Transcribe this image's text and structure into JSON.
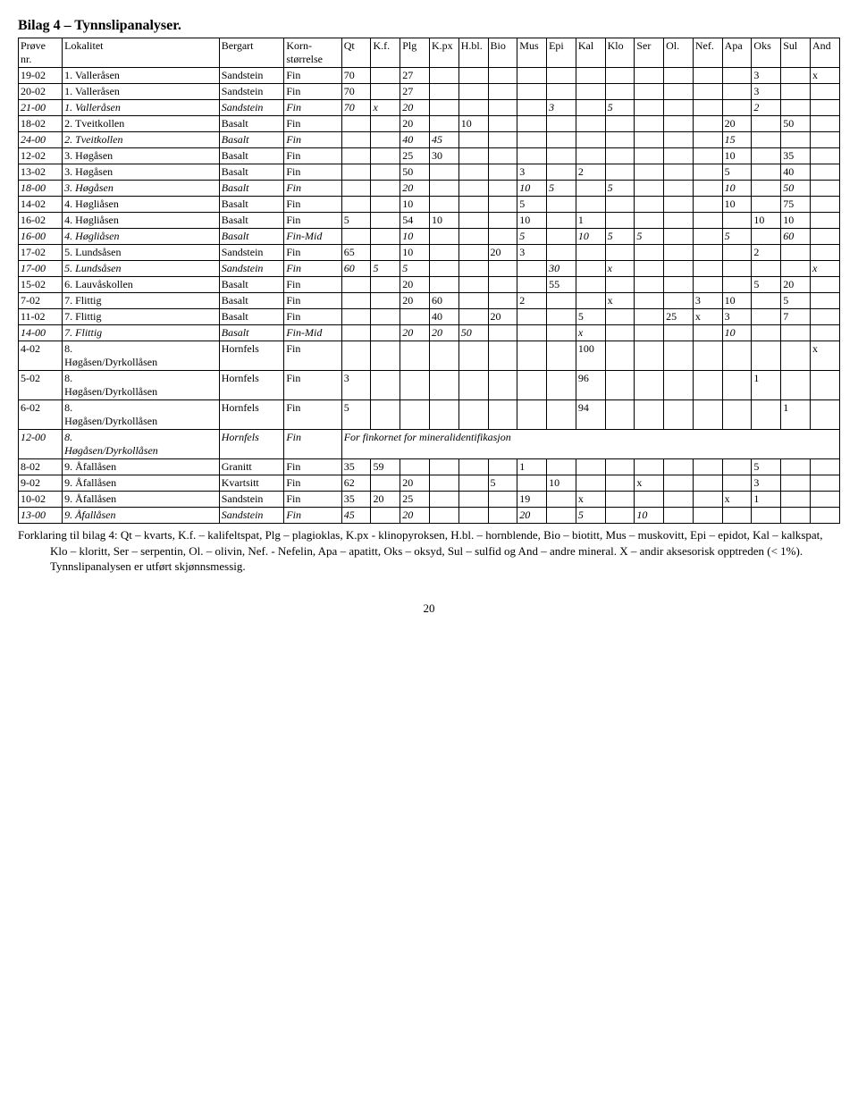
{
  "title": "Bilag 4 – Tynnslipanalyser.",
  "columns": [
    "Prøve\nnr.",
    "Lokalitet",
    "Bergart",
    "Korn-\nstørrelse",
    "Qt",
    "K.f.",
    "Plg",
    "K.px",
    "H.bl.",
    "Bio",
    "Mus",
    "Epi",
    "Kal",
    "Klo",
    "Ser",
    "Ol.",
    "Nef.",
    "Apa",
    "Oks",
    "Sul",
    "And"
  ],
  "rows": [
    {
      "i": false,
      "c": [
        "19-02",
        "1. Valleråsen",
        "Sandstein",
        "Fin",
        "70",
        "",
        "27",
        "",
        "",
        "",
        "",
        "",
        "",
        "",
        "",
        "",
        "",
        "",
        "3",
        "",
        "x"
      ]
    },
    {
      "i": false,
      "c": [
        "20-02",
        "1. Valleråsen",
        "Sandstein",
        "Fin",
        "70",
        "",
        "27",
        "",
        "",
        "",
        "",
        "",
        "",
        "",
        "",
        "",
        "",
        "",
        "3",
        "",
        ""
      ]
    },
    {
      "i": true,
      "c": [
        "21-00",
        "1. Valleråsen",
        "Sandstein",
        "Fin",
        "70",
        "x",
        "20",
        "",
        "",
        "",
        "",
        "3",
        "",
        "5",
        "",
        "",
        "",
        "",
        "2",
        "",
        ""
      ]
    },
    {
      "i": false,
      "c": [
        "18-02",
        "2. Tveitkollen",
        "Basalt",
        "Fin",
        "",
        "",
        "20",
        "",
        "10",
        "",
        "",
        "",
        "",
        "",
        "",
        "",
        "",
        "20",
        "",
        "50",
        ""
      ]
    },
    {
      "i": true,
      "c": [
        "24-00",
        "2. Tveitkollen",
        "Basalt",
        "Fin",
        "",
        "",
        "40",
        "45",
        "",
        "",
        "",
        "",
        "",
        "",
        "",
        "",
        "",
        "15",
        "",
        "",
        ""
      ]
    },
    {
      "i": false,
      "c": [
        "12-02",
        "3. Høgåsen",
        "Basalt",
        "Fin",
        "",
        "",
        "25",
        "30",
        "",
        "",
        "",
        "",
        "",
        "",
        "",
        "",
        "",
        "10",
        "",
        "35",
        ""
      ]
    },
    {
      "i": false,
      "c": [
        "13-02",
        "3. Høgåsen",
        "Basalt",
        "Fin",
        "",
        "",
        "50",
        "",
        "",
        "",
        "3",
        "",
        "2",
        "",
        "",
        "",
        "",
        "5",
        "",
        "40",
        ""
      ]
    },
    {
      "i": true,
      "c": [
        "18-00",
        "3. Høgåsen",
        "Basalt",
        "Fin",
        "",
        "",
        "20",
        "",
        "",
        "",
        "10",
        "5",
        "",
        "5",
        "",
        "",
        "",
        "10",
        "",
        "50",
        ""
      ]
    },
    {
      "i": false,
      "c": [
        "14-02",
        "4. Høgliåsen",
        "Basalt",
        "Fin",
        "",
        "",
        "10",
        "",
        "",
        "",
        "5",
        "",
        "",
        "",
        "",
        "",
        "",
        "10",
        "",
        "75",
        ""
      ]
    },
    {
      "i": false,
      "c": [
        "16-02",
        "4. Høgliåsen",
        "Basalt",
        "Fin",
        "5",
        "",
        "54",
        "10",
        "",
        "",
        "10",
        "",
        "1",
        "",
        "",
        "",
        "",
        "",
        "10",
        "10",
        ""
      ]
    },
    {
      "i": true,
      "c": [
        "16-00",
        "4. Høgliåsen",
        "Basalt",
        "Fin-Mid",
        "",
        "",
        "10",
        "",
        "",
        "",
        "5",
        "",
        "10",
        "5",
        "5",
        "",
        "",
        "5",
        "",
        "60",
        ""
      ]
    },
    {
      "i": false,
      "c": [
        "17-02",
        "5. Lundsåsen",
        "Sandstein",
        "Fin",
        "65",
        "",
        "10",
        "",
        "",
        "20",
        "3",
        "",
        "",
        "",
        "",
        "",
        "",
        "",
        "2",
        "",
        ""
      ]
    },
    {
      "i": true,
      "c": [
        "17-00",
        "5. Lundsåsen",
        "Sandstein",
        "Fin",
        "60",
        "5",
        "5",
        "",
        "",
        "",
        "",
        "30",
        "",
        "x",
        "",
        "",
        "",
        "",
        "",
        "",
        "x"
      ]
    },
    {
      "i": false,
      "c": [
        "15-02",
        "6. Lauvåskollen",
        "Basalt",
        "Fin",
        "",
        "",
        "20",
        "",
        "",
        "",
        "",
        "55",
        "",
        "",
        "",
        "",
        "",
        "",
        "5",
        "20",
        ""
      ]
    },
    {
      "i": false,
      "c": [
        "7-02",
        "7. Flittig",
        "Basalt",
        "Fin",
        "",
        "",
        "20",
        "60",
        "",
        "",
        "2",
        "",
        "",
        "x",
        "",
        "",
        "3",
        "10",
        "",
        "5",
        ""
      ]
    },
    {
      "i": false,
      "c": [
        "11-02",
        "7. Flittig",
        "Basalt",
        "Fin",
        "",
        "",
        "",
        "40",
        "",
        "20",
        "",
        "",
        "5",
        "",
        "",
        "25",
        "x",
        "3",
        "",
        "7",
        ""
      ]
    },
    {
      "i": true,
      "c": [
        "14-00",
        "7. Flittig",
        "Basalt",
        "Fin-Mid",
        "",
        "",
        "20",
        "20",
        "50",
        "",
        "",
        "",
        "x",
        "",
        "",
        "",
        "",
        "10",
        "",
        "",
        ""
      ]
    },
    {
      "i": false,
      "c": [
        "4-02",
        "8. Høgåsen/Dyrkollåsen",
        "Hornfels",
        "Fin",
        "",
        "",
        "",
        "",
        "",
        "",
        "",
        "",
        "100",
        "",
        "",
        "",
        "",
        "",
        "",
        "",
        "x"
      ]
    },
    {
      "i": false,
      "c": [
        "5-02",
        "8. Høgåsen/Dyrkollåsen",
        "Hornfels",
        "Fin",
        "3",
        "",
        "",
        "",
        "",
        "",
        "",
        "",
        "96",
        "",
        "",
        "",
        "",
        "",
        "1",
        "",
        ""
      ]
    },
    {
      "i": false,
      "c": [
        "6-02",
        "8. Høgåsen/Dyrkollåsen",
        "Hornfels",
        "Fin",
        "5",
        "",
        "",
        "",
        "",
        "",
        "",
        "",
        "94",
        "",
        "",
        "",
        "",
        "",
        "",
        "1",
        ""
      ]
    },
    {
      "i": true,
      "c": [
        "12-00",
        "8. Høgåsen/Dyrkollåsen",
        "Hornfels",
        "Fin"
      ],
      "span": "For finkornet for mineralidentifikasjon"
    },
    {
      "i": false,
      "c": [
        "8-02",
        "9. Åfallåsen",
        "Granitt",
        "Fin",
        "35",
        "59",
        "",
        "",
        "",
        "",
        "1",
        "",
        "",
        "",
        "",
        "",
        "",
        "",
        "5",
        "",
        ""
      ]
    },
    {
      "i": false,
      "c": [
        "9-02",
        "9. Åfallåsen",
        "Kvartsitt",
        "Fin",
        "62",
        "",
        "20",
        "",
        "",
        "5",
        "",
        "10",
        "",
        "",
        "x",
        "",
        "",
        "",
        "3",
        "",
        ""
      ]
    },
    {
      "i": false,
      "c": [
        "10-02",
        "9. Åfallåsen",
        "Sandstein",
        "Fin",
        "35",
        "20",
        "25",
        "",
        "",
        "",
        "19",
        "",
        "x",
        "",
        "",
        "",
        "",
        "x",
        "1",
        "",
        ""
      ]
    },
    {
      "i": true,
      "c": [
        "13-00",
        "9. Åfallåsen",
        "Sandstein",
        "Fin",
        "45",
        "",
        "20",
        "",
        "",
        "",
        "20",
        "",
        "5",
        "",
        "10",
        "",
        "",
        "",
        "",
        "",
        ""
      ]
    }
  ],
  "forklaring": "Forklaring til bilag 4: Qt – kvarts, K.f. – kalifeltspat, Plg – plagioklas,  K.px  - klinopyroksen, H.bl. – hornblende, Bio – biotitt, Mus – muskovitt, Epi – epidot, Kal – kalkspat, Klo – kloritt, Ser – serpentin, Ol. – olivin, Nef. - Nefelin, Apa – apatitt, Oks – oksyd, Sul – sulfid og And – andre mineral. X – andir aksesorisk opptreden (< 1%). Tynnslipanalysen er utført skjønnsmessig.",
  "pagenum": "20"
}
